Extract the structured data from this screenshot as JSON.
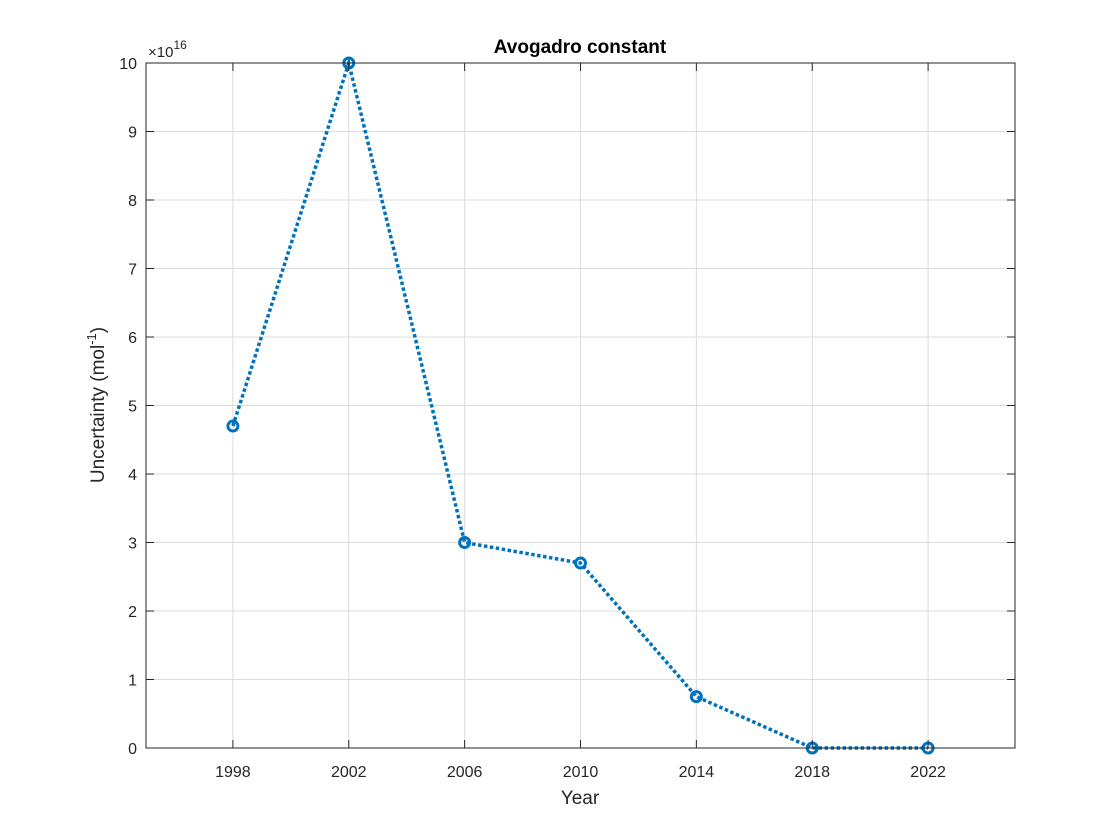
{
  "chart_data": {
    "type": "line",
    "title": "Avogadro constant",
    "xlabel": "Year",
    "ylabel_main": "Uncertainty (mol",
    "ylabel_sup": "-1",
    "ylabel_close": ")",
    "y_multiplier_base": "×10",
    "y_multiplier_exp": "16",
    "xlim": [
      1995,
      2025
    ],
    "ylim": [
      0,
      10
    ],
    "x_ticks": [
      1998,
      2002,
      2006,
      2010,
      2014,
      2018,
      2022
    ],
    "y_ticks": [
      0,
      1,
      2,
      3,
      4,
      5,
      6,
      7,
      8,
      9,
      10
    ],
    "grid": true,
    "series": [
      {
        "x": [
          1998,
          2002,
          2006,
          2010,
          2014,
          2018,
          2022
        ],
        "y": [
          4.7,
          10,
          3.0,
          2.7,
          0.75,
          0,
          0
        ],
        "color": "#0072BD",
        "line_style": "dotted",
        "marker": "circle"
      }
    ]
  }
}
